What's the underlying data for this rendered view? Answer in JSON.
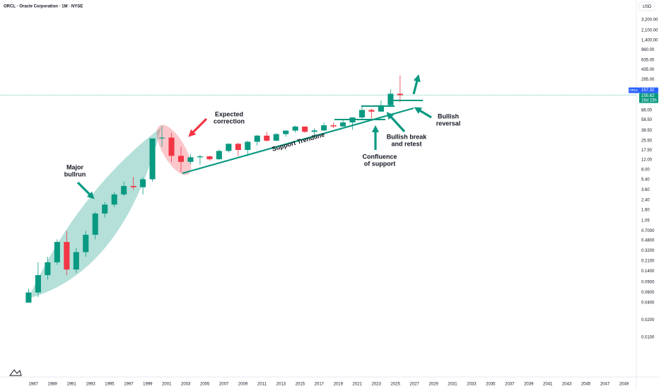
{
  "chart_data": {
    "type": "candlestick",
    "title": "ORCL · Oracle Corporation · 1M · NYSE",
    "currency": "USD",
    "symbol_tag": "ORCL",
    "prepost_price": 155.62,
    "countdown": "16d 23h",
    "log_scale": true,
    "grid": false,
    "up_color": "#089981",
    "down_color": "#f23645",
    "x": [
      1986,
      1987,
      1988,
      1989,
      1990,
      1991,
      1992,
      1993,
      1994,
      1995,
      1996,
      1997,
      1998,
      1999,
      2000,
      2001,
      2002,
      2003,
      2004,
      2005,
      2006,
      2007,
      2008,
      2009,
      2010,
      2011,
      2012,
      2013,
      2014,
      2015,
      2016,
      2017,
      2018,
      2019,
      2020,
      2021,
      2022,
      2023,
      2024,
      2025
    ],
    "open": [
      0.04,
      0.06,
      0.12,
      0.2,
      0.45,
      0.15,
      0.3,
      0.6,
      1.4,
      2,
      3,
      4.2,
      4,
      5.5,
      28,
      29,
      14,
      11,
      13.2,
      13.7,
      12.2,
      17,
      22.6,
      17.7,
      24.5,
      31.3,
      25.6,
      33.3,
      38.3,
      45,
      36.5,
      38.5,
      47.3,
      45.2,
      53,
      64.7,
      87.2,
      81.7,
      105.4,
      166.6
    ],
    "high": [
      0.07,
      0.2,
      0.25,
      0.5,
      0.7,
      0.35,
      0.7,
      1.5,
      2.2,
      3.3,
      5,
      6,
      6,
      28,
      46,
      35,
      20,
      15,
      14.5,
      14,
      18,
      23,
      23.6,
      25.5,
      32.3,
      36.5,
      34.5,
      38.4,
      46.7,
      45.2,
      42,
      53,
      52.8,
      60.5,
      65.5,
      106,
      92,
      127.5,
      198.3,
      345.7
    ],
    "low": [
      0.04,
      0.05,
      0.1,
      0.18,
      0.12,
      0.13,
      0.25,
      0.5,
      1.2,
      1.8,
      2.8,
      3.6,
      3,
      5,
      20,
      11,
      7.3,
      10,
      9.8,
      11.5,
      12,
      16,
      13.8,
      13.8,
      21,
      24.7,
      25.3,
      30,
      35.4,
      35,
      33,
      38,
      42.4,
      44.6,
      39.7,
      60,
      60.8,
      80.8,
      99.3,
      118.9
    ],
    "close": [
      0.06,
      0.12,
      0.2,
      0.45,
      0.15,
      0.3,
      0.6,
      1.4,
      2,
      3,
      4.2,
      4,
      5.5,
      28,
      29,
      14,
      11,
      13.2,
      13.7,
      12.2,
      17,
      22.6,
      17.7,
      24.5,
      31.3,
      25.6,
      33.3,
      38.3,
      45,
      36.5,
      38.5,
      47.3,
      45.2,
      53,
      64.7,
      87.2,
      81.7,
      105.4,
      166.6,
      157.32
    ],
    "xlim": [
      1983.5,
      2050.3
    ],
    "xticks": [
      1987,
      1989,
      1991,
      1993,
      1995,
      1997,
      1999,
      2001,
      2003,
      2005,
      2007,
      2009,
      2011,
      2013,
      2015,
      2017,
      2019,
      2021,
      2023,
      2025,
      2027,
      2029,
      2031,
      2033,
      2035,
      2037,
      2039,
      2041,
      2043,
      2045,
      2047,
      2049
    ],
    "ylim": [
      0.00206,
      7015
    ],
    "yticks": [
      {
        "value": 3200,
        "label": "3,200.00"
      },
      {
        "value": 2100,
        "label": "2,100.00"
      },
      {
        "value": 1400,
        "label": "1,400.00"
      },
      {
        "value": 960,
        "label": "960.00"
      },
      {
        "value": 635,
        "label": "635.00"
      },
      {
        "value": 435,
        "label": "435.00"
      },
      {
        "value": 295,
        "label": "295.00"
      },
      {
        "value": 86,
        "label": "86.00"
      },
      {
        "value": 58.5,
        "label": "58.50"
      },
      {
        "value": 38.5,
        "label": "38.50"
      },
      {
        "value": 25.5,
        "label": "25.50"
      },
      {
        "value": 17.5,
        "label": "17.50"
      },
      {
        "value": 12,
        "label": "12.00"
      },
      {
        "value": 8,
        "label": "8.00"
      },
      {
        "value": 5.4,
        "label": "5.40"
      },
      {
        "value": 3.6,
        "label": "3.60"
      },
      {
        "value": 2.4,
        "label": "2.40"
      },
      {
        "value": 1.6,
        "label": "1.60"
      },
      {
        "value": 1.05,
        "label": "1.05"
      },
      {
        "value": 0.7,
        "label": "0.7000"
      },
      {
        "value": 0.48,
        "label": "0.4800"
      },
      {
        "value": 0.32,
        "label": "0.3200"
      },
      {
        "value": 0.21,
        "label": "0.2100"
      },
      {
        "value": 0.14,
        "label": "0.1400"
      },
      {
        "value": 0.09,
        "label": "0.0900"
      },
      {
        "value": 0.06,
        "label": "0.0600"
      },
      {
        "value": 0.04,
        "label": "0.0400"
      },
      {
        "value": 0.02,
        "label": "0.0200"
      },
      {
        "value": 0.01,
        "label": "0.0100"
      }
    ],
    "annotations": [
      {
        "lines": [
          "Major",
          "bullrun"
        ]
      },
      {
        "lines": [
          "Expected",
          "correction"
        ]
      },
      {
        "lines": [
          "Support Trendline"
        ]
      },
      {
        "lines": [
          "Confluence",
          "of support"
        ]
      },
      {
        "lines": [
          "Bullish break",
          "and retest"
        ]
      },
      {
        "lines": [
          "Bullish",
          "reversal"
        ]
      }
    ]
  }
}
